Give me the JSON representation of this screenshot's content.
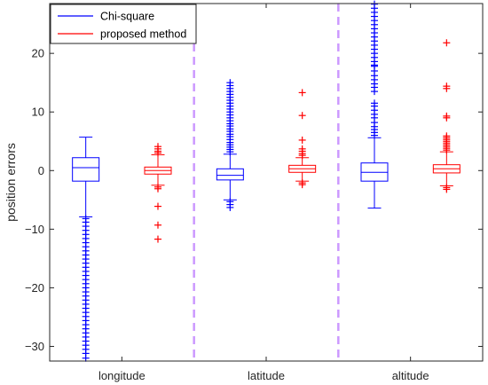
{
  "chart_data": {
    "type": "boxplot",
    "ylabel": "position errors",
    "xlabel": "",
    "ylim": [
      -32.5,
      28.5
    ],
    "yticks": [
      -30,
      -20,
      -10,
      0,
      10,
      20
    ],
    "grid": false,
    "legend_position": "top-left",
    "categories": [
      "longitude",
      "latitude",
      "altitude"
    ],
    "separators": "dashed",
    "series": [
      {
        "name": "Chi-square",
        "color": "#0000ff",
        "boxes": [
          {
            "category": "longitude",
            "q1": -1.8,
            "median": 0.5,
            "q3": 2.2,
            "whisker_low": -7.9,
            "whisker_high": 5.7,
            "outliers": [
              -8.2,
              -8.8,
              -9.5,
              -10.2,
              -10.9,
              -11.6,
              -12.3,
              -13.0,
              -13.7,
              -14.4,
              -15.1,
              -15.8,
              -16.5,
              -17.2,
              -17.9,
              -18.6,
              -19.3,
              -20.0,
              -20.7,
              -21.4,
              -22.1,
              -22.8,
              -23.5,
              -24.2,
              -24.9,
              -25.6,
              -26.3,
              -27.0,
              -27.7,
              -28.4,
              -29.1,
              -29.8,
              -30.5,
              -31.2,
              -32.0
            ]
          },
          {
            "category": "latitude",
            "q1": -1.6,
            "median": -0.8,
            "q3": 0.3,
            "whisker_low": -5.0,
            "whisker_high": 2.8,
            "outliers": [
              3.2,
              3.6,
              4.0,
              4.4,
              4.8,
              5.3,
              5.8,
              6.2,
              6.7,
              7.1,
              7.6,
              8.0,
              8.5,
              9.0,
              9.5,
              10.0,
              10.5,
              11.0,
              11.5,
              12.0,
              12.5,
              13.0,
              13.5,
              14.0,
              14.5,
              15.0,
              -5.3,
              -5.8,
              -6.3
            ]
          },
          {
            "category": "altitude",
            "q1": -1.8,
            "median": -0.3,
            "q3": 1.3,
            "whisker_low": -6.4,
            "whisker_high": 5.6,
            "outliers": [
              6.0,
              6.5,
              7.0,
              7.5,
              8.2,
              9.0,
              9.6,
              10.3,
              11.0,
              11.5,
              13.5,
              14.2,
              14.8,
              15.5,
              16.2,
              17.0,
              17.8,
              18.0,
              18.6,
              19.3,
              20.0,
              20.7,
              21.4,
              22.1,
              22.8,
              23.5,
              24.2,
              24.9,
              25.6,
              26.3,
              27.0,
              27.7,
              28.4
            ]
          }
        ]
      },
      {
        "name": "proposed method",
        "color": "#ff0000",
        "boxes": [
          {
            "category": "longitude",
            "q1": -0.6,
            "median": 0.0,
            "q3": 0.6,
            "whisker_low": -2.5,
            "whisker_high": 2.7,
            "outliers": [
              3.0,
              3.3,
              3.7,
              4.1,
              -2.8,
              -3.1,
              -6.1,
              -9.3,
              -11.7
            ]
          },
          {
            "category": "latitude",
            "q1": -0.3,
            "median": 0.3,
            "q3": 0.9,
            "whisker_low": -1.8,
            "whisker_high": 2.2,
            "outliers": [
              2.6,
              2.9,
              3.3,
              3.7,
              5.2,
              9.4,
              13.3,
              -2.1,
              -2.4
            ]
          },
          {
            "category": "altitude",
            "q1": -0.4,
            "median": 0.3,
            "q3": 1.0,
            "whisker_low": -2.6,
            "whisker_high": 3.2,
            "outliers": [
              3.5,
              3.8,
              4.1,
              4.4,
              4.7,
              5.0,
              5.3,
              5.6,
              5.9,
              9.0,
              9.3,
              14.0,
              14.4,
              21.8,
              -2.9,
              -3.2
            ]
          }
        ]
      }
    ]
  }
}
